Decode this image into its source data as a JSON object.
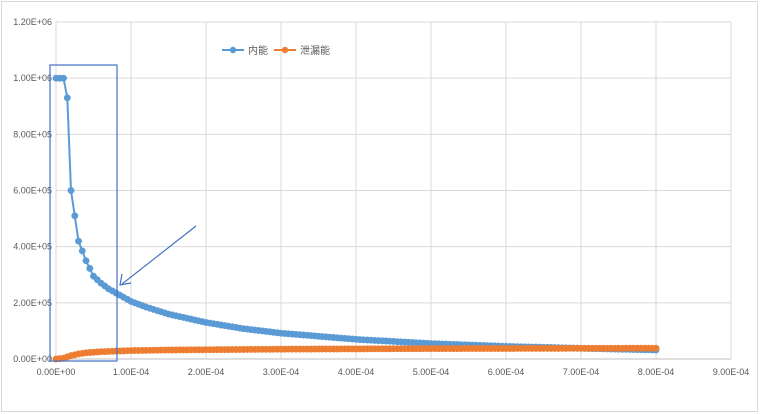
{
  "chart_data": {
    "type": "scatter",
    "title": "",
    "xlabel": "",
    "ylabel": "",
    "xlim": [
      0,
      0.0009
    ],
    "ylim": [
      0,
      1200000
    ],
    "x_ticks": [
      "0.00E+00",
      "1.00E-04",
      "2.00E-04",
      "3.00E-04",
      "4.00E-04",
      "5.00E-04",
      "6.00E-04",
      "7.00E-04",
      "8.00E-04",
      "9.00E-04"
    ],
    "y_ticks": [
      "0.00E+00",
      "2.00E+05",
      "4.00E+05",
      "6.00E+05",
      "8.00E+05",
      "1.00E+06",
      "1.20E+06"
    ],
    "grid": true,
    "legend_position": "top-left",
    "series": [
      {
        "name": "内能",
        "color": "#5B9BD5",
        "x": [
          0,
          5e-06,
          1e-05,
          1.5e-05,
          2e-05,
          3e-05,
          4e-05,
          5e-05,
          6e-05,
          7e-05,
          8e-05,
          0.0001,
          0.00012,
          0.00015,
          0.0002,
          0.00025,
          0.0003,
          0.0004,
          0.0005,
          0.0006,
          0.0007,
          0.0008
        ],
        "y": [
          1000000,
          1000000,
          1000000,
          930000,
          600000,
          420000,
          350000,
          295000,
          270000,
          250000,
          235000,
          205000,
          185000,
          160000,
          130000,
          108000,
          92000,
          70000,
          55000,
          45000,
          38000,
          32000
        ]
      },
      {
        "name": "泄漏能",
        "color": "#ED7D31",
        "x": [
          0,
          1e-05,
          2e-05,
          3e-05,
          4e-05,
          5e-05,
          6e-05,
          8e-05,
          0.0001,
          0.00015,
          0.0002,
          0.0003,
          0.0004,
          0.0005,
          0.0006,
          0.0007,
          0.0008
        ],
        "y": [
          0,
          3000,
          12000,
          18000,
          22000,
          24000,
          26000,
          28000,
          30000,
          32000,
          33000,
          35000,
          36000,
          37000,
          37500,
          38000,
          38500
        ]
      }
    ]
  },
  "legend": [
    {
      "label": "内能",
      "color": "#5B9BD5"
    },
    {
      "label": "泄漏能",
      "color": "#ED7D31"
    }
  ],
  "annotation": {
    "type": "highlight-box-with-arrow",
    "color": "#4472C4"
  }
}
